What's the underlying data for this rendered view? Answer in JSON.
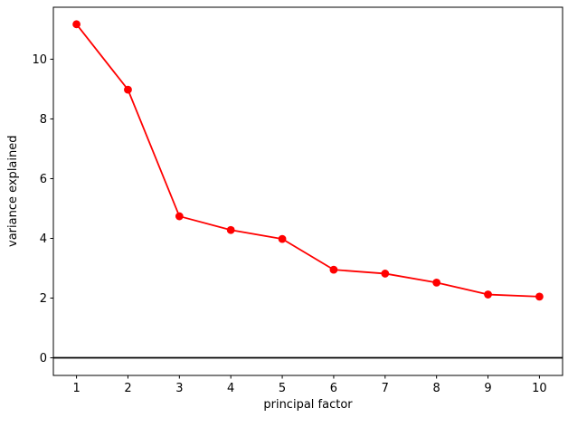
{
  "figure": {
    "background_color": "#ffffff",
    "text_color": "#000000"
  },
  "chart_data": {
    "type": "line",
    "title": "",
    "xlabel": "principal factor",
    "ylabel": "variance explained",
    "x": [
      1,
      2,
      3,
      4,
      5,
      6,
      7,
      8,
      9,
      10
    ],
    "series": [
      {
        "name": "variance explained",
        "color": "#ff0000",
        "marker": "circle",
        "values": [
          11.17,
          8.98,
          4.74,
          4.28,
          3.98,
          2.95,
          2.82,
          2.52,
          2.12,
          2.05
        ]
      }
    ],
    "x_ticks": [
      1,
      2,
      3,
      4,
      5,
      6,
      7,
      8,
      9,
      10
    ],
    "x_tick_labels": [
      "1",
      "2",
      "3",
      "4",
      "5",
      "6",
      "7",
      "8",
      "9",
      "10"
    ],
    "y_ticks": [
      0,
      2,
      4,
      6,
      8,
      10
    ],
    "y_tick_labels": [
      "0",
      "2",
      "4",
      "6",
      "8",
      "10"
    ],
    "xlim": [
      0.55,
      10.45
    ],
    "ylim": [
      -0.59,
      11.74
    ],
    "grid": false,
    "legend_position": "none",
    "reference_lines": [
      {
        "axis": "y",
        "value": 0,
        "color": "#000000"
      }
    ],
    "axis_color": "#000000"
  }
}
